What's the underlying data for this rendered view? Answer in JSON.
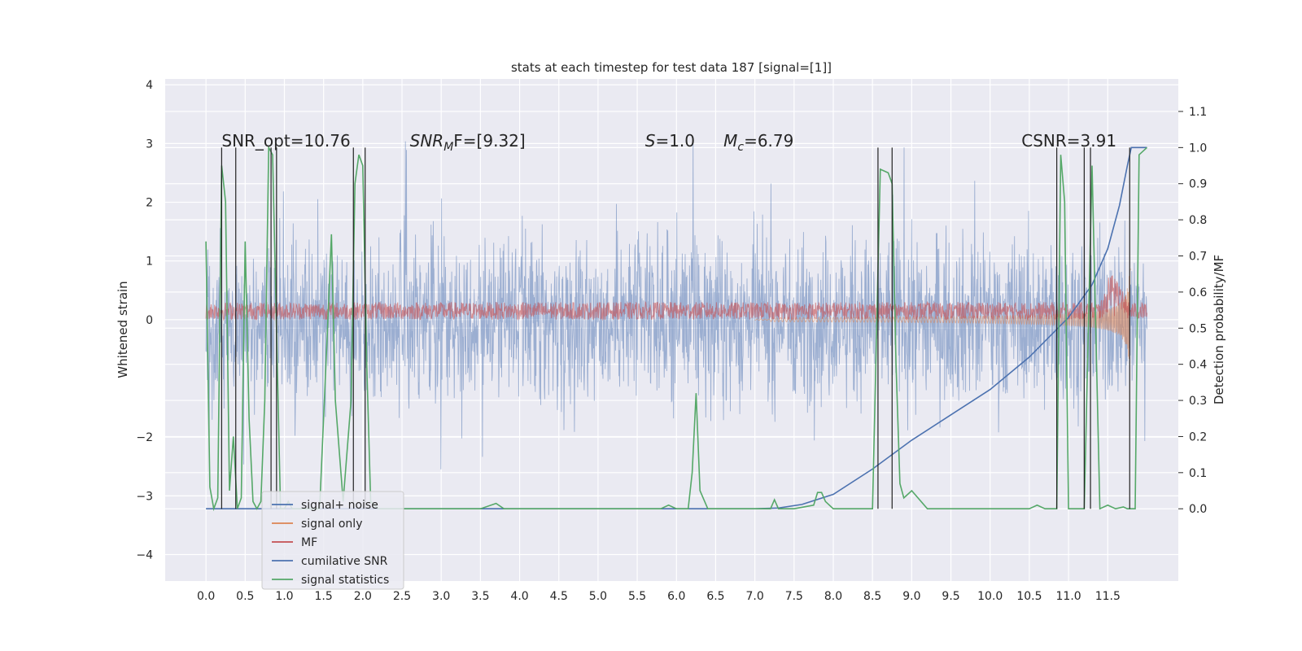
{
  "chart_data": {
    "type": "line",
    "title": "stats at each timestep for test data 187 [signal=[1]]",
    "xlabel": "",
    "ylabel": "Whitened strain",
    "y2label": "Detection probability/MF",
    "xlim": [
      -0.52,
      12.4
    ],
    "ylim": [
      -4.45,
      4.1
    ],
    "y2lim": [
      -0.2,
      1.19
    ],
    "xticks": [
      "0.0",
      "0.5",
      "1.0",
      "1.5",
      "2.0",
      "2.5",
      "3.0",
      "3.5",
      "4.0",
      "4.5",
      "5.0",
      "5.5",
      "6.0",
      "6.5",
      "7.0",
      "7.5",
      "8.0",
      "8.5",
      "9.0",
      "9.5",
      "10.0",
      "10.5",
      "11.0",
      "11.5"
    ],
    "yticks": [
      "4",
      "3",
      "2",
      "1",
      "0",
      "−2",
      "−3",
      "−4"
    ],
    "y2ticks": [
      "0.0",
      "0.1",
      "0.2",
      "0.3",
      "0.4",
      "0.5",
      "0.6",
      "0.7",
      "0.8",
      "0.9",
      "1.0",
      "1.1"
    ],
    "grid": true,
    "legend_position": "lower-left",
    "annotations": [
      {
        "id": "snr_opt",
        "text": "SNR_opt=10.76",
        "x": 0.2
      },
      {
        "id": "snr_mf",
        "text": "SNR",
        "sub": "M",
        "suffix": "F=[9.32]",
        "italic": true,
        "x": 2.6
      },
      {
        "id": "s",
        "text": "S",
        "suffix": "=1.0",
        "italic": true,
        "x": 5.6
      },
      {
        "id": "mc",
        "text": "M",
        "sub": "c",
        "suffix": "=6.79",
        "italic": true,
        "x": 6.6
      },
      {
        "id": "csnr",
        "text": "CSNR=3.91",
        "x": 10.4
      }
    ],
    "annotation_y": 2.95,
    "series": [
      {
        "name": "signal+ noise",
        "color": "#4c72b0",
        "axis": "left",
        "kind": "noise_band",
        "amplitude": 1.25,
        "t_end": 12.0
      },
      {
        "name": "signal only",
        "color": "#dd8452",
        "axis": "left",
        "kind": "chirp",
        "t_end": 11.8
      },
      {
        "name": "MF",
        "color": "#c44e52",
        "axis": "left",
        "kind": "mf_band",
        "t_end": 12.0
      },
      {
        "name": "cumilative SNR",
        "color": "#4c72b0",
        "axis": "right",
        "x": [
          0.0,
          7.0,
          7.3,
          7.6,
          8.0,
          8.5,
          9.0,
          9.5,
          10.0,
          10.5,
          11.0,
          11.3,
          11.5,
          11.65,
          11.75,
          11.8,
          12.0
        ],
        "y": [
          0.0,
          0.0,
          0.002,
          0.012,
          0.04,
          0.11,
          0.19,
          0.26,
          0.33,
          0.42,
          0.53,
          0.62,
          0.72,
          0.84,
          0.95,
          1.0,
          1.0
        ]
      },
      {
        "name": "signal statistics",
        "color": "#55a868",
        "axis": "right",
        "x": [
          0.0,
          0.05,
          0.1,
          0.15,
          0.2,
          0.25,
          0.3,
          0.35,
          0.4,
          0.45,
          0.5,
          0.55,
          0.6,
          0.65,
          0.7,
          0.75,
          0.8,
          0.85,
          0.9,
          0.95,
          1.0,
          1.05,
          1.1,
          1.2,
          1.3,
          1.45,
          1.55,
          1.6,
          1.65,
          1.75,
          1.85,
          1.9,
          1.95,
          2.0,
          2.05,
          2.1,
          2.2,
          2.5,
          3.0,
          3.5,
          3.7,
          3.8,
          4.0,
          5.0,
          5.8,
          5.9,
          6.0,
          6.15,
          6.2,
          6.25,
          6.3,
          6.4,
          6.5,
          7.0,
          7.2,
          7.25,
          7.3,
          7.5,
          7.75,
          7.8,
          7.85,
          7.9,
          8.0,
          8.3,
          8.5,
          8.6,
          8.7,
          8.75,
          8.8,
          8.85,
          8.9,
          9.0,
          9.2,
          9.5,
          10.0,
          10.5,
          10.6,
          10.7,
          10.85,
          10.9,
          10.95,
          11.0,
          11.2,
          11.3,
          11.4,
          11.5,
          11.6,
          11.7,
          11.75,
          11.8,
          11.85,
          11.9,
          12.0
        ],
        "y": [
          0.74,
          0.06,
          0.0,
          0.03,
          0.95,
          0.85,
          0.05,
          0.2,
          0.0,
          0.03,
          0.74,
          0.25,
          0.02,
          0.0,
          0.02,
          0.3,
          1.0,
          0.98,
          0.5,
          0.0,
          0.0,
          0.02,
          0.0,
          0.0,
          0.0,
          0.0,
          0.5,
          0.76,
          0.3,
          0.02,
          0.3,
          0.9,
          0.98,
          0.95,
          0.4,
          0.02,
          0.0,
          0.0,
          0.0,
          0.0,
          0.015,
          0.0,
          0.0,
          0.0,
          0.0,
          0.01,
          0.0,
          0.0,
          0.1,
          0.32,
          0.05,
          0.0,
          0.0,
          0.0,
          0.0,
          0.025,
          0.0,
          0.0,
          0.01,
          0.045,
          0.045,
          0.02,
          0.0,
          0.0,
          0.0,
          0.94,
          0.93,
          0.9,
          0.4,
          0.07,
          0.03,
          0.05,
          0.0,
          0.0,
          0.0,
          0.0,
          0.01,
          0.0,
          0.0,
          0.98,
          0.85,
          0.0,
          0.0,
          0.95,
          0.0,
          0.01,
          0.0,
          0.005,
          0.0,
          0.0,
          0.0,
          0.98,
          1.0
        ]
      }
    ],
    "vlines": [
      0.2,
      0.38,
      0.83,
      0.9,
      1.88,
      2.03,
      8.57,
      8.75,
      10.85,
      11.2,
      11.28,
      11.78
    ]
  }
}
